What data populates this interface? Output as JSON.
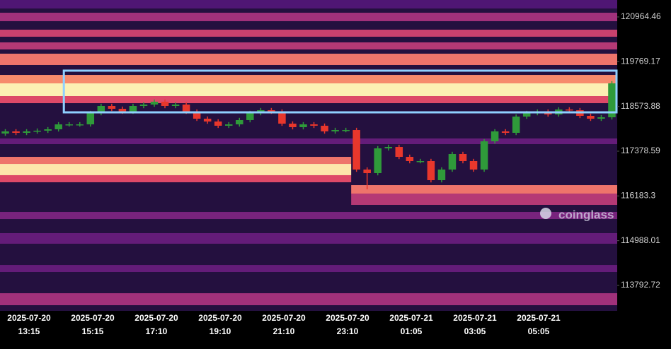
{
  "chart_data": {
    "type": "candlestick",
    "watermark": "coinglass",
    "ylim": [
      113113,
      121417
    ],
    "yticks": [
      120964.46,
      119769.17,
      118573.88,
      117378.59,
      116183.3,
      114988.01,
      113792.72
    ],
    "xticks": [
      [
        "2025-07-20",
        "13:15"
      ],
      [
        "2025-07-20",
        "15:15"
      ],
      [
        "2025-07-20",
        "17:10"
      ],
      [
        "2025-07-20",
        "19:10"
      ],
      [
        "2025-07-20",
        "21:10"
      ],
      [
        "2025-07-20",
        "23:10"
      ],
      [
        "2025-07-21",
        "01:05"
      ],
      [
        "2025-07-21",
        "03:05"
      ],
      [
        "2025-07-21",
        "05:05"
      ]
    ],
    "up_color": "#2f9a3a",
    "down_color": "#e8372c",
    "background": "#24103f",
    "open": [
      117850,
      117907,
      117869,
      117907,
      117926,
      117963,
      118095,
      118095,
      118095,
      118397,
      118586,
      118511,
      118435,
      118586,
      118624,
      118700,
      118586,
      118624,
      118435,
      118246,
      118171,
      118058,
      118095,
      118209,
      118397,
      118473,
      118435,
      118114,
      118020,
      118095,
      118058,
      117907,
      117944,
      117944,
      116888,
      116793,
      117454,
      117491,
      117227,
      117114,
      117114,
      116604,
      116888,
      117303,
      117114,
      116888,
      117642,
      117907,
      117869,
      118303,
      118397,
      118435,
      118360,
      118492,
      118473,
      118322,
      118246,
      118284
    ],
    "high": [
      117967,
      117967,
      117967,
      117986,
      118023,
      118155,
      118155,
      118155,
      118457,
      118646,
      118646,
      118571,
      118646,
      118684,
      118760,
      118760,
      118684,
      118684,
      118495,
      118306,
      118231,
      118155,
      118269,
      118457,
      118533,
      118533,
      118495,
      118174,
      118155,
      118155,
      118118,
      118004,
      118004,
      118004,
      116948,
      117514,
      117551,
      117551,
      117287,
      117174,
      117174,
      116948,
      117363,
      117363,
      117174,
      117702,
      117967,
      117967,
      118363,
      118457,
      118495,
      118495,
      118552,
      118552,
      118533,
      118382,
      118344,
      119250
    ],
    "low": [
      117790,
      117809,
      117809,
      117847,
      117866,
      117903,
      118035,
      118035,
      118035,
      118337,
      118451,
      118375,
      118375,
      118526,
      118564,
      118526,
      118526,
      118375,
      118186,
      118111,
      117998,
      117998,
      118035,
      118149,
      118337,
      118375,
      118054,
      117960,
      117960,
      117998,
      117847,
      117847,
      117884,
      116828,
      116359,
      116733,
      117394,
      117167,
      117054,
      117054,
      116544,
      116544,
      116828,
      117054,
      116828,
      116828,
      117582,
      117809,
      117809,
      118243,
      118337,
      118300,
      118300,
      118413,
      118262,
      118186,
      118186,
      118224
    ],
    "close": [
      117907,
      117869,
      117907,
      117926,
      117963,
      118095,
      118095,
      118095,
      118397,
      118586,
      118511,
      118435,
      118586,
      118624,
      118700,
      118586,
      118624,
      118435,
      118246,
      118171,
      118058,
      118095,
      118209,
      118397,
      118473,
      118435,
      118114,
      118020,
      118095,
      118058,
      117907,
      117944,
      117944,
      116888,
      116793,
      117454,
      117491,
      117227,
      117114,
      117114,
      116604,
      116888,
      117303,
      117114,
      116888,
      117642,
      117907,
      117869,
      118303,
      118397,
      118435,
      118360,
      118492,
      118473,
      118322,
      118246,
      118284,
      119190
    ],
    "heatmap": [
      {
        "low": 121190,
        "high": 121417,
        "intensity": 0.25,
        "from": 0,
        "to": 58
      },
      {
        "low": 120851,
        "high": 121077,
        "intensity": 0.45,
        "from": 0,
        "to": 58
      },
      {
        "low": 120436,
        "high": 120624,
        "intensity": 0.55,
        "from": 0,
        "to": 58
      },
      {
        "low": 120096,
        "high": 120285,
        "intensity": 0.5,
        "from": 0,
        "to": 58
      },
      {
        "low": 119681,
        "high": 119983,
        "intensity": 0.7,
        "from": 0,
        "to": 58
      },
      {
        "low": 119190,
        "high": 119416,
        "intensity": 0.75,
        "from": 0,
        "to": 58
      },
      {
        "low": 118850,
        "high": 119190,
        "intensity": 0.97,
        "from": 0,
        "to": 58
      },
      {
        "low": 118661,
        "high": 118850,
        "intensity": 0.6,
        "from": 0,
        "to": 58
      },
      {
        "low": 117567,
        "high": 117718,
        "intensity": 0.3,
        "from": 0,
        "to": 58
      },
      {
        "low": 117038,
        "high": 117227,
        "intensity": 0.7,
        "from": 0,
        "to": 33
      },
      {
        "low": 116737,
        "high": 117038,
        "intensity": 0.95,
        "from": 0,
        "to": 33
      },
      {
        "low": 116548,
        "high": 116737,
        "intensity": 0.6,
        "from": 0,
        "to": 33
      },
      {
        "low": 116246,
        "high": 116472,
        "intensity": 0.7,
        "from": 33,
        "to": 58
      },
      {
        "low": 115944,
        "high": 116246,
        "intensity": 0.5,
        "from": 33,
        "to": 58
      },
      {
        "low": 115566,
        "high": 115755,
        "intensity": 0.35,
        "from": 0,
        "to": 58
      },
      {
        "low": 114906,
        "high": 115189,
        "intensity": 0.3,
        "from": 0,
        "to": 58
      },
      {
        "low": 114151,
        "high": 114339,
        "intensity": 0.3,
        "from": 0,
        "to": 58
      },
      {
        "low": 113264,
        "high": 113584,
        "intensity": 0.45,
        "from": 0,
        "to": 58
      }
    ],
    "highlight": {
      "low": 118416,
      "high": 119530,
      "from": 6,
      "to": 58,
      "color": "#8fd0ff"
    }
  }
}
